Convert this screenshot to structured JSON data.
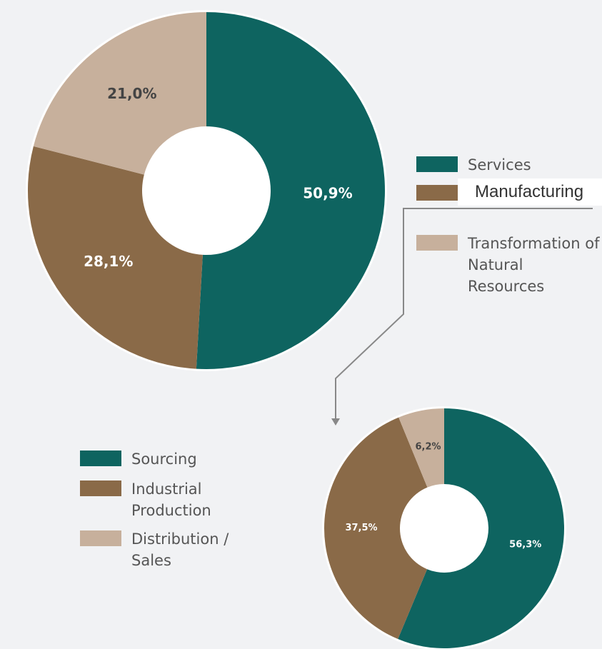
{
  "chart_data": [
    {
      "type": "pie",
      "categories": [
        "Services",
        "Manufacturing",
        "Transformation of Natural Resources"
      ],
      "values": [
        50.9,
        28.1,
        21.0
      ],
      "value_labels": [
        "50,9%",
        "28,1%",
        "21,0%"
      ],
      "colors": [
        "#0e6460",
        "#8a6a48",
        "#c7b09c"
      ]
    },
    {
      "type": "pie",
      "categories": [
        "Sourcing",
        "Industrial Production",
        "Distribution / Sales"
      ],
      "values": [
        56.3,
        37.5,
        6.2
      ],
      "value_labels": [
        "56,3%",
        "37,5%",
        "6,2%"
      ],
      "colors": [
        "#0e6460",
        "#8a6a48",
        "#c7b09c"
      ]
    }
  ]
}
